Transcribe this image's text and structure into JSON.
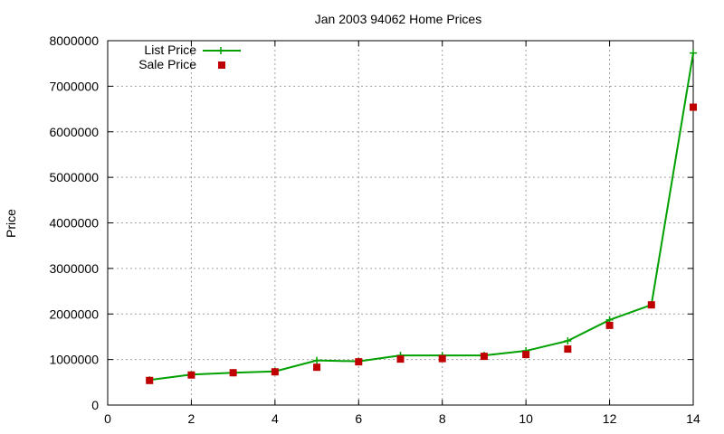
{
  "chart_data": {
    "type": "line",
    "title": "Jan 2003 94062 Home Prices",
    "xlabel": "",
    "ylabel": "Price",
    "xlim": [
      0,
      14
    ],
    "ylim": [
      0,
      8000000
    ],
    "xticks": [
      0,
      2,
      4,
      6,
      8,
      10,
      12,
      14
    ],
    "yticks": [
      0,
      1000000,
      2000000,
      3000000,
      4000000,
      5000000,
      6000000,
      7000000,
      8000000
    ],
    "grid": true,
    "legend_position": "top-left",
    "series": [
      {
        "name": "List Price",
        "style": "line-and-plus-marker",
        "color": "#00a000",
        "x": [
          1,
          2,
          3,
          4,
          5,
          6,
          7,
          8,
          9,
          10,
          11,
          12,
          13,
          14
        ],
        "y": [
          550000,
          670000,
          710000,
          740000,
          980000,
          960000,
          1090000,
          1090000,
          1090000,
          1190000,
          1410000,
          1870000,
          2200000,
          7730000
        ]
      },
      {
        "name": "Sale Price",
        "style": "square-marker",
        "color": "#c00000",
        "x": [
          1,
          2,
          3,
          4,
          5,
          6,
          7,
          8,
          9,
          10,
          11,
          12,
          13,
          14
        ],
        "y": [
          540000,
          660000,
          710000,
          730000,
          830000,
          950000,
          1010000,
          1020000,
          1070000,
          1110000,
          1230000,
          1750000,
          2200000,
          6540000
        ]
      }
    ]
  }
}
